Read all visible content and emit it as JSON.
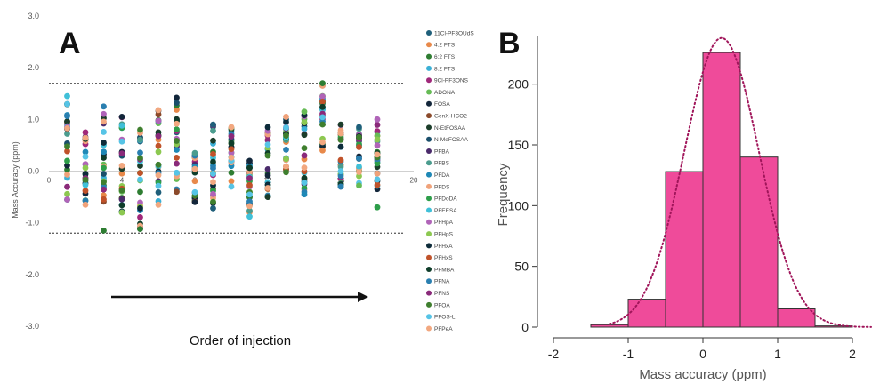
{
  "panels": {
    "a_label": "A",
    "b_label": "B"
  },
  "chart_data": [
    {
      "type": "scatter",
      "ylabel": "Mass Accuracy (ppm)",
      "xlabel": "Order of injection",
      "xlim": [
        0,
        20
      ],
      "ylim": [
        -3.0,
        3.0
      ],
      "x_ticks": [
        "0",
        "4",
        "8",
        "12",
        "16",
        "20"
      ],
      "y_ticks": [
        "3.0",
        "2.0",
        "1.0",
        "0.0",
        "-1.0",
        "-2.0",
        "-3.0"
      ],
      "reference_lines": [
        1.7,
        -1.2
      ],
      "arrow_direction": "left-to-right",
      "legend_position": "right",
      "series": [
        {
          "name": "11Cl-PF3OUdS",
          "color": "#1f5f7a"
        },
        {
          "name": "4:2 FTS",
          "color": "#e8894a"
        },
        {
          "name": "6:2 FTS",
          "color": "#2e7d32"
        },
        {
          "name": "8:2 FTS",
          "color": "#3bb0d6"
        },
        {
          "name": "9Cl-PF3ONS",
          "color": "#a0287a"
        },
        {
          "name": "ADONA",
          "color": "#66bb55"
        },
        {
          "name": "FOSA",
          "color": "#12263a"
        },
        {
          "name": "GenX-HCO2",
          "color": "#8b4a2b"
        },
        {
          "name": "N-EtFOSAA",
          "color": "#1b3d2a"
        },
        {
          "name": "N-MeFOSAA",
          "color": "#1a4f6b"
        },
        {
          "name": "PFBA",
          "color": "#4a2a6b"
        },
        {
          "name": "PFBS",
          "color": "#4b9c8e"
        },
        {
          "name": "PFDA",
          "color": "#1e88b6"
        },
        {
          "name": "PFDS",
          "color": "#f0a27a"
        },
        {
          "name": "PFDoDA",
          "color": "#2e9e4a"
        },
        {
          "name": "PFEESA",
          "color": "#40c0d8"
        },
        {
          "name": "PFHpA",
          "color": "#b064b8"
        },
        {
          "name": "PFHpS",
          "color": "#8cc850"
        },
        {
          "name": "PFHxA",
          "color": "#0d2b3a"
        },
        {
          "name": "PFHxS",
          "color": "#c0522a"
        },
        {
          "name": "PFMBA",
          "color": "#0f3d2a"
        },
        {
          "name": "PFNA",
          "color": "#2a7fb0"
        },
        {
          "name": "PFNS",
          "color": "#8a2a7a"
        },
        {
          "name": "PFOA",
          "color": "#3f7f2e"
        },
        {
          "name": "PFOS-L",
          "color": "#56c4e6"
        },
        {
          "name": "PFPeA",
          "color": "#f2a880"
        }
      ],
      "injections": [
        {
          "x": 1,
          "min": -0.55,
          "max": 1.45
        },
        {
          "x": 2,
          "min": -0.65,
          "max": 0.75
        },
        {
          "x": 3,
          "min": -1.15,
          "max": 1.25
        },
        {
          "x": 4,
          "min": -0.8,
          "max": 1.05
        },
        {
          "x": 5,
          "min": -1.12,
          "max": 0.8
        },
        {
          "x": 6,
          "min": -0.65,
          "max": 1.18
        },
        {
          "x": 7,
          "min": -0.4,
          "max": 1.42
        },
        {
          "x": 8,
          "min": -0.6,
          "max": 0.35
        },
        {
          "x": 9,
          "min": -0.72,
          "max": 0.9
        },
        {
          "x": 10,
          "min": -0.3,
          "max": 0.85
        },
        {
          "x": 11,
          "min": -0.88,
          "max": 0.2
        },
        {
          "x": 12,
          "min": -0.5,
          "max": 0.85
        },
        {
          "x": 13,
          "min": -0.02,
          "max": 1.05
        },
        {
          "x": 14,
          "min": -0.45,
          "max": 1.15
        },
        {
          "x": 15,
          "min": 0.4,
          "max": 1.7
        },
        {
          "x": 16,
          "min": -0.3,
          "max": 0.9
        },
        {
          "x": 17,
          "min": -0.28,
          "max": 0.85
        },
        {
          "x": 18,
          "min": -0.7,
          "max": 1.0
        }
      ]
    },
    {
      "type": "bar",
      "xlabel": "Mass accuracy (ppm)",
      "ylabel": "Frequency",
      "bin_edges": [
        -1.5,
        -1.0,
        -0.5,
        0.0,
        0.5,
        1.0,
        1.5,
        2.0
      ],
      "values": [
        2,
        23,
        128,
        226,
        140,
        15,
        1
      ],
      "xlim": [
        -2,
        2
      ],
      "ylim": [
        0,
        240
      ],
      "x_ticks": [
        "-2",
        "-1",
        "0",
        "1",
        "2"
      ],
      "y_ticks": [
        "0",
        "50",
        "100",
        "150",
        "200"
      ],
      "bar_color": "#ef4b9a",
      "fit_curve": {
        "type": "normal",
        "mean": 0.25,
        "sd": 0.5,
        "peak": 238,
        "color": "#a0155a",
        "style": "dotted"
      }
    }
  ]
}
